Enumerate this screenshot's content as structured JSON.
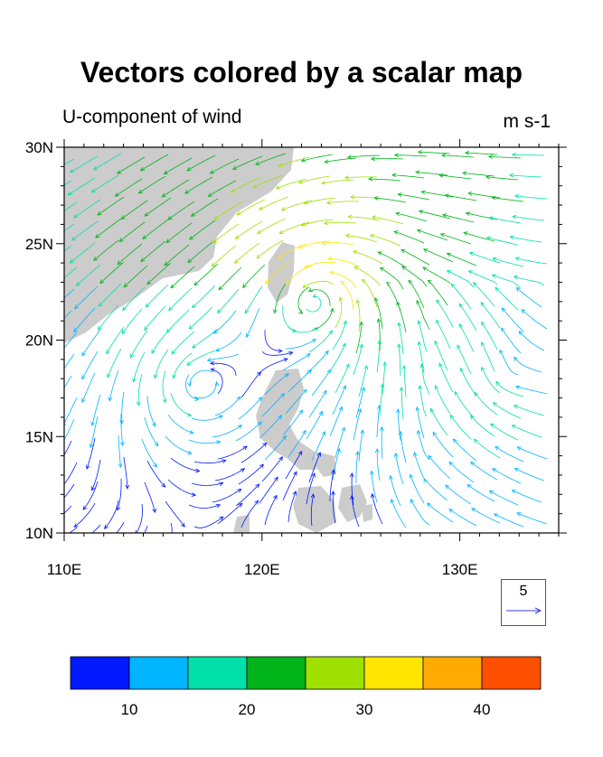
{
  "title": "Vectors colored by a scalar map",
  "left_string": "U-component of wind",
  "right_string": "m s-1",
  "map": {
    "lon_range": [
      110,
      135
    ],
    "lat_range": [
      10,
      30
    ],
    "lon_ticks": [
      {
        "value": 110,
        "label": "110E"
      },
      {
        "value": 120,
        "label": "120E"
      },
      {
        "value": 130,
        "label": "130E"
      }
    ],
    "lat_ticks": [
      {
        "value": 10,
        "label": "10N"
      },
      {
        "value": 15,
        "label": "15N"
      },
      {
        "value": 20,
        "label": "20N"
      },
      {
        "value": 25,
        "label": "25N"
      },
      {
        "value": 30,
        "label": "30N"
      }
    ],
    "land_color": "#cccccc",
    "features": [
      {
        "name": "tropical-cyclone-center",
        "lon": 123.0,
        "lat": 22.5
      },
      {
        "name": "secondary-circulation-center",
        "lon": 116.5,
        "lat": 17.8
      }
    ]
  },
  "reference_vector": {
    "value": "5"
  },
  "colorbar": {
    "colors": [
      "#0019ff",
      "#00b4ff",
      "#00e0a8",
      "#00b419",
      "#a0e000",
      "#ffe600",
      "#ffaa00",
      "#ff5000"
    ],
    "labels": [
      "10",
      "20",
      "30",
      "40"
    ]
  }
}
